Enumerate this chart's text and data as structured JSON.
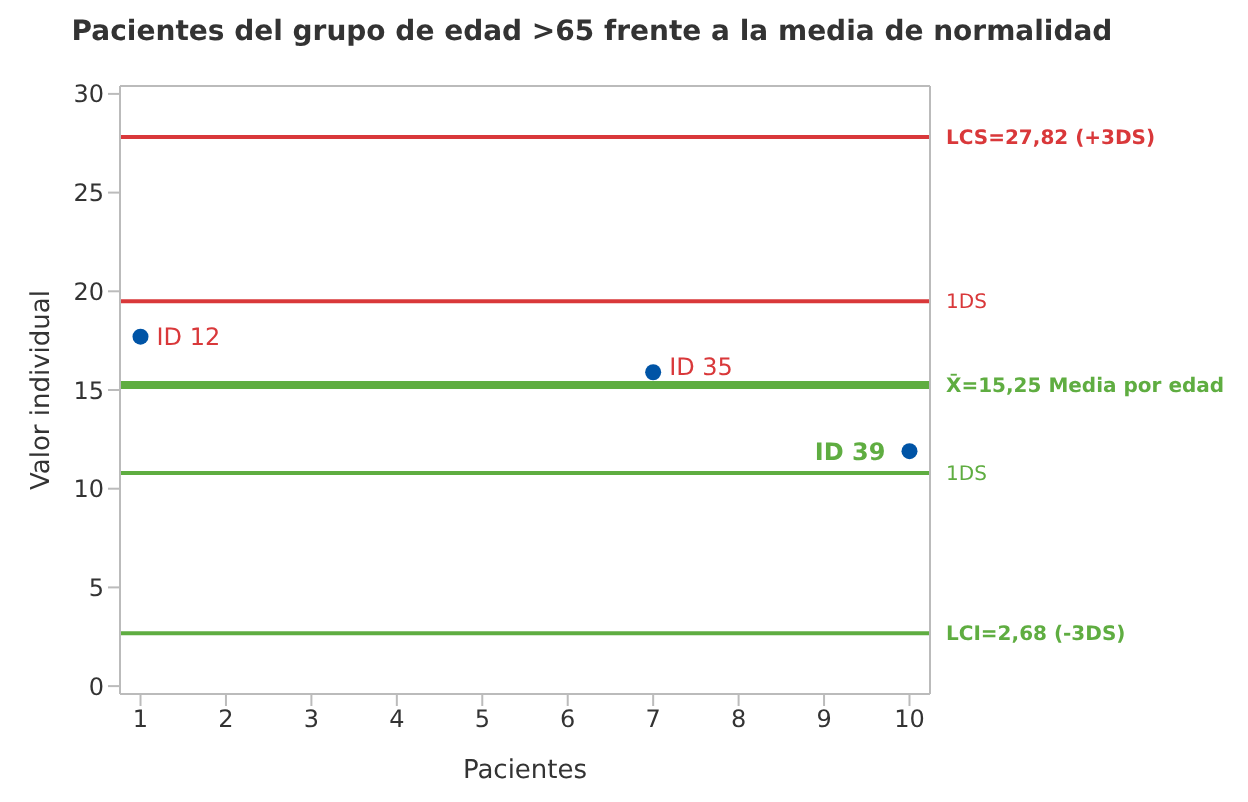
{
  "chart_data": {
    "type": "scatter",
    "title": "Pacientes del grupo de edad >65 frente a la media de normalidad",
    "xlabel": "Pacientes",
    "ylabel": "Valor individual",
    "x": [
      1,
      7,
      10
    ],
    "values": [
      17.7,
      15.9,
      11.9
    ],
    "color": "#0054a6",
    "marker": "circle",
    "xlim": [
      0.76,
      10.24
    ],
    "ylim": [
      -0.4,
      30.4
    ],
    "xticks": [
      1,
      2,
      3,
      4,
      5,
      6,
      7,
      8,
      9,
      10
    ],
    "yticks": [
      0,
      5,
      10,
      15,
      20,
      25,
      30
    ],
    "grid": false,
    "ref_lines": [
      {
        "axis": "y",
        "value": 27.82,
        "label": "LCS=27,82 (+3DS)",
        "color": "#d9383a"
      },
      {
        "axis": "y",
        "value": 19.5,
        "label": "1DS",
        "color": "#d9383a"
      },
      {
        "axis": "y",
        "value": 15.25,
        "label": "X̄=15,25 Media por edad",
        "color": "#5fad41"
      },
      {
        "axis": "y",
        "value": 10.8,
        "label": "1DS",
        "color": "#5fad41"
      },
      {
        "axis": "y",
        "value": 2.68,
        "label": "LCI=2,68 (-3DS)",
        "color": "#5fad41"
      }
    ],
    "annotations": [
      {
        "text": "ID 12",
        "x": 1,
        "y": 17.7
      },
      {
        "text": "ID 35",
        "x": 7,
        "y": 15.9
      },
      {
        "text": "ID 39",
        "x": 10,
        "y": 11.9
      }
    ]
  }
}
